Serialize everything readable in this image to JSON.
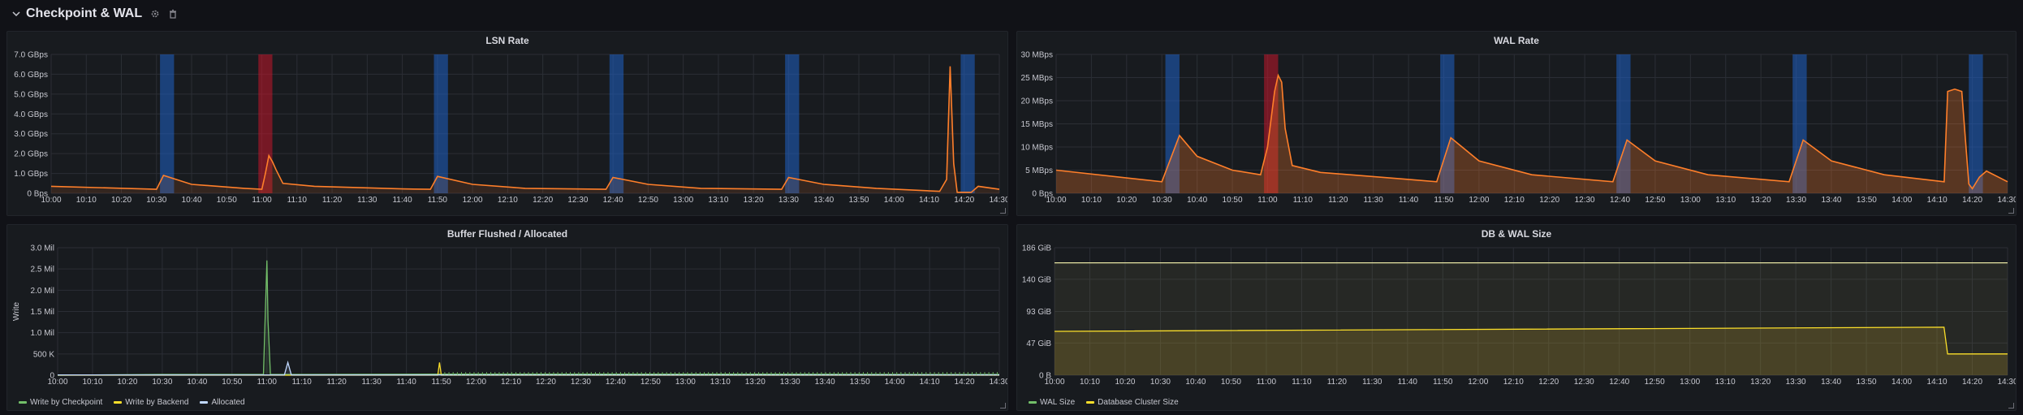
{
  "row": {
    "title": "Checkpoint & WAL",
    "icons": [
      "chevron-down-icon",
      "gear-icon",
      "trash-icon"
    ]
  },
  "colors": {
    "orange": "#ff7f2a",
    "green": "#73bf69",
    "yellow": "#fade2a",
    "pale_yellow": "#e8e5a4",
    "blue_band": "#1f60c4",
    "red_band": "#c4162a",
    "grid": "#2b2e35"
  },
  "time_axis": [
    "10:00",
    "10:10",
    "10:20",
    "10:30",
    "10:40",
    "10:50",
    "11:00",
    "11:10",
    "11:20",
    "11:30",
    "11:40",
    "11:50",
    "12:00",
    "12:10",
    "12:20",
    "12:30",
    "12:40",
    "12:50",
    "13:00",
    "13:10",
    "13:20",
    "13:30",
    "13:40",
    "13:50",
    "14:00",
    "14:10",
    "14:20",
    "14:30"
  ],
  "checkpoint_bands": [
    {
      "start_min": 31,
      "end_min": 35,
      "kind": "timed"
    },
    {
      "start_min": 59,
      "end_min": 63,
      "kind": "requested"
    },
    {
      "start_min": 109,
      "end_min": 113,
      "kind": "timed"
    },
    {
      "start_min": 159,
      "end_min": 163,
      "kind": "timed"
    },
    {
      "start_min": 209,
      "end_min": 213,
      "kind": "timed"
    },
    {
      "start_min": 259,
      "end_min": 263,
      "kind": "timed"
    }
  ],
  "panels": {
    "lsn": {
      "title": "LSN Rate",
      "y_ticks": [
        "0 Bps",
        "1.0 GBps",
        "2.0 GBps",
        "3.0 GBps",
        "4.0 GBps",
        "5.0 GBps",
        "6.0 GBps",
        "7.0 GBps"
      ]
    },
    "wal": {
      "title": "WAL Rate",
      "y_ticks": [
        "0 Bps",
        "5 MBps",
        "10 MBps",
        "15 MBps",
        "20 MBps",
        "25 MBps",
        "30 MBps"
      ]
    },
    "buffer": {
      "title": "Buffer Flushed / Allocated",
      "y_axis_label": "Write",
      "y_ticks": [
        "0",
        "500 K",
        "1.0 Mil",
        "1.5 Mil",
        "2.0 Mil",
        "2.5 Mil",
        "3.0 Mil"
      ],
      "legend": [
        {
          "label": "Write by Checkpoint",
          "color": "#73bf69"
        },
        {
          "label": "Write by Backend",
          "color": "#fade2a"
        },
        {
          "label": "Allocated",
          "color": "#c0d8ff"
        }
      ]
    },
    "size": {
      "title": "DB & WAL Size",
      "y_ticks": [
        "0 B",
        "47 GiB",
        "93 GiB",
        "140 GiB",
        "186 GiB"
      ],
      "legend": [
        {
          "label": "WAL Size",
          "color": "#73bf69"
        },
        {
          "label": "Database Cluster Size",
          "color": "#fade2a"
        }
      ]
    }
  },
  "chart_data": [
    {
      "type": "line",
      "title": "LSN Rate",
      "unit": "GBps",
      "ylim": [
        0,
        7.0
      ],
      "x": [
        0,
        30,
        32,
        40,
        55,
        60,
        61,
        62,
        63,
        64,
        66,
        75,
        100,
        108,
        110,
        120,
        135,
        158,
        160,
        170,
        185,
        208,
        210,
        220,
        235,
        253,
        255,
        256,
        257,
        258,
        262,
        264,
        270
      ],
      "series": [
        {
          "name": "LSN Rate",
          "values": [
            0.35,
            0.2,
            0.9,
            0.45,
            0.25,
            0.2,
            1.0,
            1.9,
            1.6,
            1.2,
            0.5,
            0.35,
            0.22,
            0.2,
            0.85,
            0.45,
            0.25,
            0.2,
            0.8,
            0.45,
            0.25,
            0.2,
            0.8,
            0.45,
            0.25,
            0.1,
            0.7,
            6.4,
            1.5,
            0.05,
            0.05,
            0.35,
            0.2
          ]
        }
      ]
    },
    {
      "type": "area",
      "title": "WAL Rate",
      "unit": "MBps",
      "ylim": [
        0,
        30
      ],
      "x": [
        0,
        30,
        35,
        40,
        50,
        58,
        60,
        62,
        63,
        64,
        65,
        67,
        75,
        100,
        108,
        112,
        120,
        135,
        158,
        162,
        170,
        185,
        208,
        212,
        220,
        235,
        252,
        253,
        255,
        257,
        258,
        259,
        260,
        262,
        264,
        270
      ],
      "series": [
        {
          "name": "WAL Rate",
          "values": [
            5,
            2.5,
            12.5,
            8,
            5,
            4,
            10,
            22,
            25.5,
            24,
            14,
            6,
            4.5,
            3,
            2.5,
            12,
            7,
            4,
            2.5,
            11.5,
            7,
            4,
            2.5,
            11.5,
            7,
            4,
            2.5,
            22,
            22.5,
            22,
            12,
            2,
            1,
            3.5,
            4.8,
            2.5
          ]
        }
      ]
    },
    {
      "type": "line",
      "title": "Buffer Flushed / Allocated",
      "ylabel": "Write",
      "ylim": [
        0,
        3000000
      ],
      "series": [
        {
          "name": "Write by Checkpoint",
          "x": [
            0,
            30,
            59,
            60,
            60.3,
            61,
            70,
            110,
            150,
            200,
            250,
            270
          ],
          "values": [
            0,
            20000,
            20000,
            2700000,
            1300000,
            20000,
            20000,
            25000,
            25000,
            25000,
            20000,
            20000
          ]
        },
        {
          "name": "Write by Backend",
          "x": [
            0,
            109,
            109.5,
            110,
            270
          ],
          "values": [
            0,
            0,
            300000,
            0,
            0
          ]
        },
        {
          "name": "Allocated",
          "x": [
            0,
            65,
            66,
            67,
            270
          ],
          "values": [
            5000,
            5000,
            300000,
            5000,
            5000
          ]
        }
      ]
    },
    {
      "type": "area",
      "title": "DB & WAL Size",
      "unit": "GiB",
      "ylim": [
        0,
        186
      ],
      "x": [
        0,
        252,
        253,
        270
      ],
      "series": [
        {
          "name": "WAL Size",
          "values": [
            164,
            164,
            164,
            164
          ]
        },
        {
          "name": "Database Cluster Size",
          "values": [
            64,
            70,
            31,
            31
          ]
        }
      ]
    }
  ]
}
